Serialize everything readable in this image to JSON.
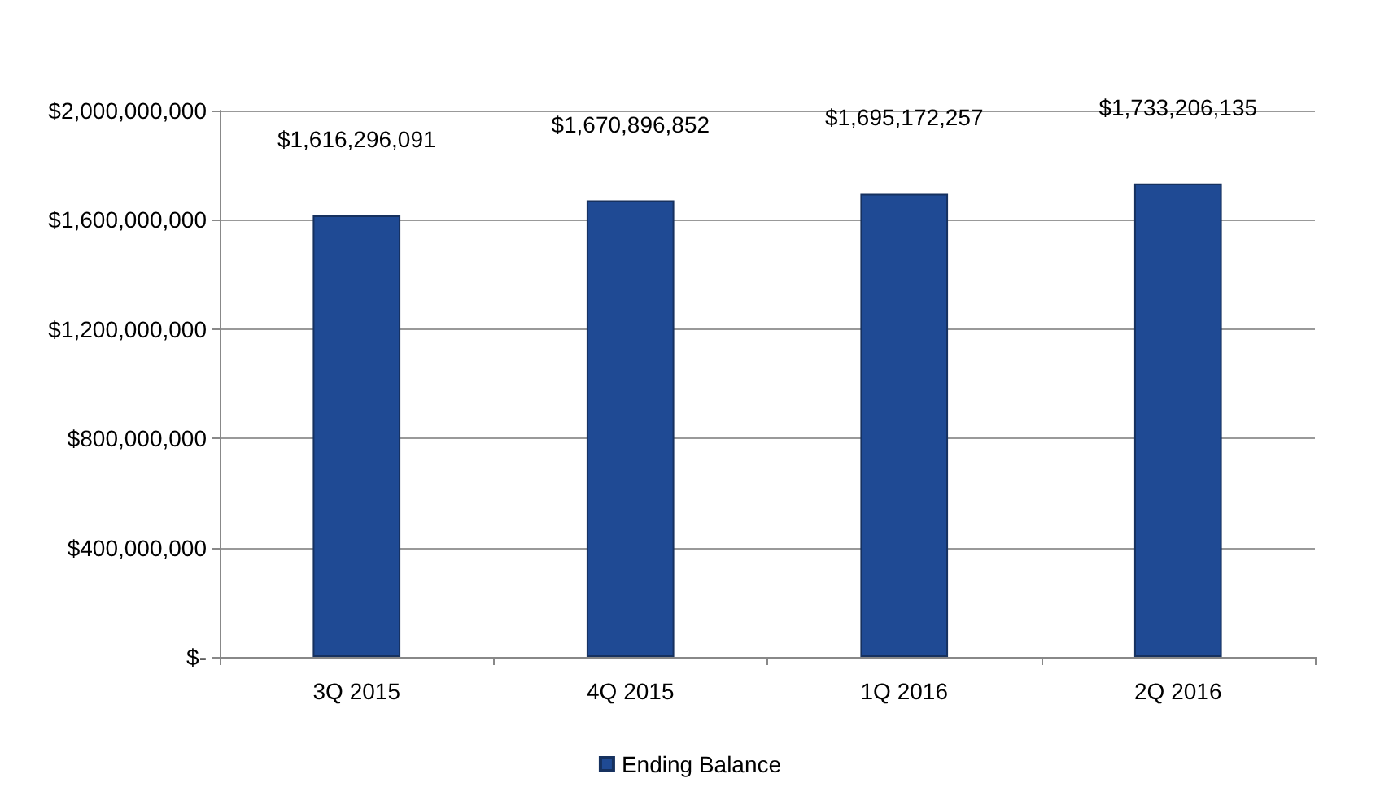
{
  "chart_data": {
    "type": "bar",
    "categories": [
      "3Q 2015",
      "4Q 2015",
      "1Q 2016",
      "2Q 2016"
    ],
    "series": [
      {
        "name": "Ending Balance",
        "color": "#1f4a94",
        "values": [
          1616296091,
          1670896852,
          1695172257,
          1733206135
        ],
        "value_labels": [
          "$1,616,296,091",
          "$1,670,896,852",
          "$1,695,172,257",
          "$1,733,206,135"
        ]
      }
    ],
    "ylim": [
      0,
      2000000000
    ],
    "yticks": [
      {
        "value": 0,
        "label": "$-"
      },
      {
        "value": 400000000,
        "label": "$400,000,000"
      },
      {
        "value": 800000000,
        "label": "$800,000,000"
      },
      {
        "value": 1200000000,
        "label": "$1,200,000,000"
      },
      {
        "value": 1600000000,
        "label": "$1,600,000,000"
      },
      {
        "value": 2000000000,
        "label": "$2,000,000,000"
      }
    ],
    "grid": "y",
    "legend": "bottom"
  }
}
